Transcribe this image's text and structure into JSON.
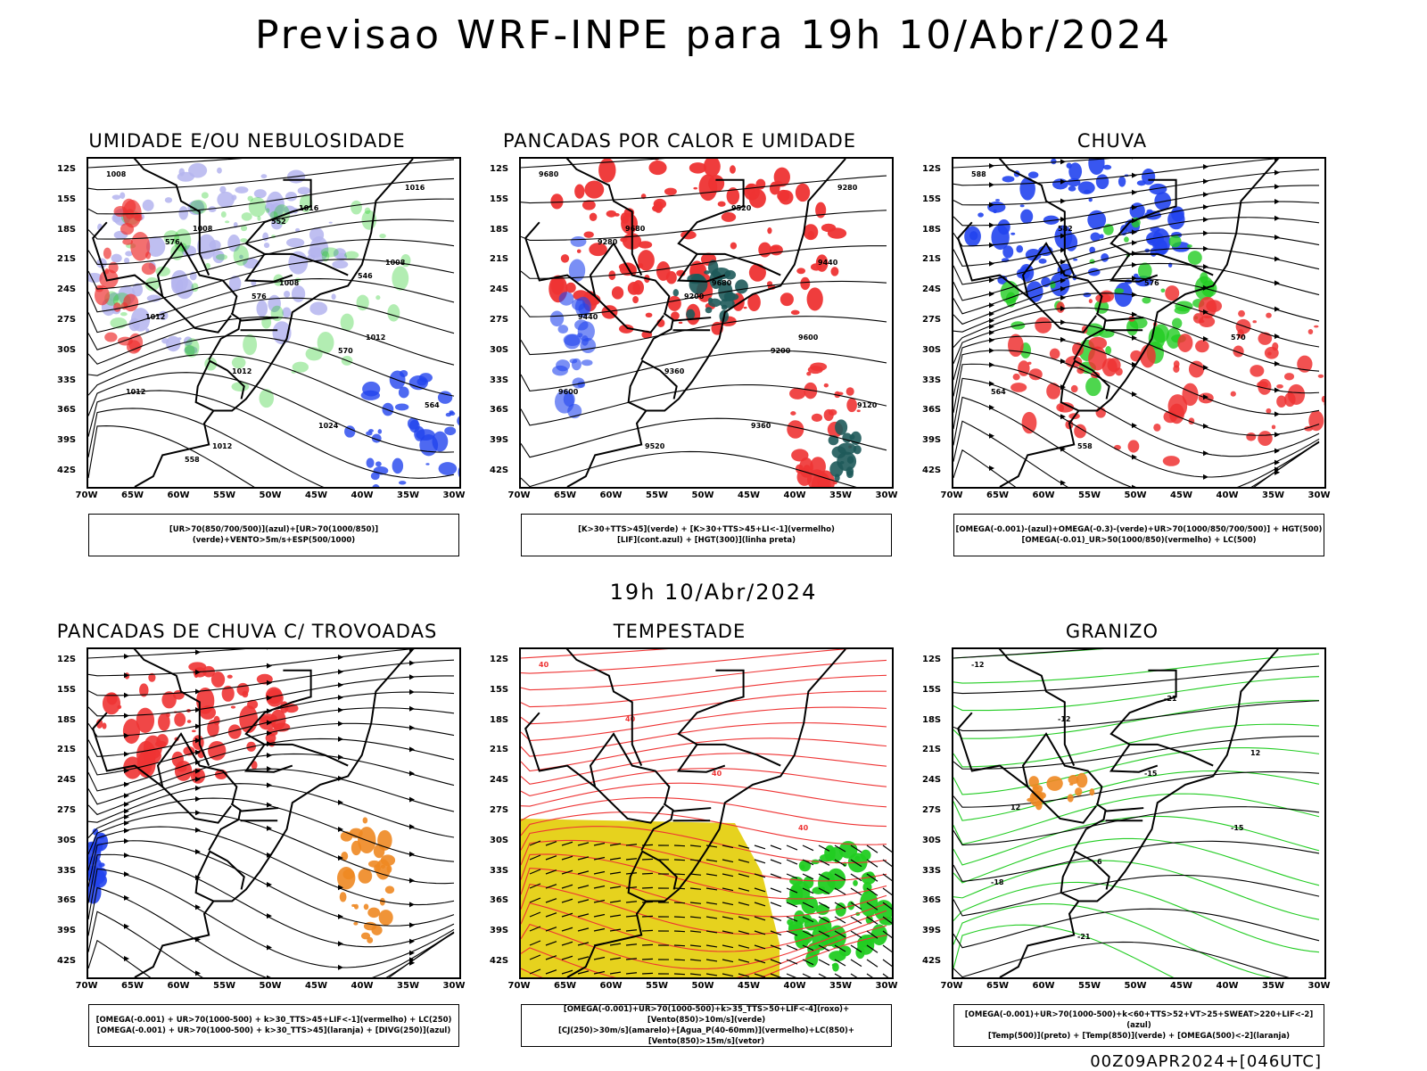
{
  "title": "Previsao WRF-INPE  para 19h 10/Abr/2024",
  "subtitle": "19h 10/Abr/2024",
  "footer": "00Z09APR2024+[046UTC]",
  "lat_labels": [
    "12S",
    "15S",
    "18S",
    "21S",
    "24S",
    "27S",
    "30S",
    "33S",
    "36S",
    "39S",
    "42S"
  ],
  "lon_labels": [
    "70W",
    "65W",
    "60W",
    "55W",
    "50W",
    "45W",
    "40W",
    "35W",
    "30W"
  ],
  "colors": {
    "black": "#000000",
    "red": "#ee3333",
    "green": "#22cc22",
    "blue": "#2244ee",
    "lavender": "#b4b4ee",
    "yellow": "#e6d21e",
    "orange": "#ee8822",
    "teal": "#1e5a5a",
    "darkgreen": "#0b5f0b"
  },
  "panels": [
    {
      "id": "umidade",
      "title": "UMIDADE E/OU NEBULOSIDADE",
      "legend": [
        "[UR>70(850/700/500)](azul)+[UR>70(1000/850)](verde)+VENTO>5m/s+ESP(500/1000)"
      ],
      "contour_labels": [
        "1008",
        "1008",
        "1008",
        "1012",
        "1012",
        "1012",
        "1016",
        "1008",
        "1012",
        "1012",
        "1024",
        "1016",
        "576",
        "576",
        "570",
        "564",
        "558",
        "552",
        "546"
      ]
    },
    {
      "id": "pancadas-calor",
      "title": "PANCADAS POR CALOR E UMIDADE",
      "legend": [
        "[K>30+TTS>45](verde) + [K>30+TTS>45+LI<-1](vermelho)",
        "[LIF](cont.azul) + [HGT(300)](linha preta)"
      ],
      "contour_labels": [
        "9680",
        "9680",
        "9680",
        "9600",
        "9600",
        "9520",
        "9520",
        "9440",
        "9440",
        "9360",
        "9360",
        "9280",
        "9280",
        "9200",
        "9200",
        "9120"
      ]
    },
    {
      "id": "chuva",
      "title": "CHUVA",
      "legend": [
        "[OMEGA(-0.001)-(azul)+OMEGA(-0.3)-(verde)+UR>70(1000/850/700/500)] + HGT(500)",
        "[OMEGA(-0.01)_UR>50(1000/850)(vermelho) + LC(500)"
      ],
      "contour_labels": [
        "588",
        "582",
        "576",
        "570",
        "564",
        "558"
      ]
    },
    {
      "id": "trovoadas",
      "title": "PANCADAS DE CHUVA C/ TROVOADAS",
      "legend": [
        "[OMEGA(-0.001) + UR>70(1000-500) + k>30_TTS>45+LIF<-1](vermelho) + LC(250)",
        "[OMEGA(-0.001) + UR>70(1000-500) + k>30_TTS>45](laranja) + [DIVG(250)](azul)"
      ],
      "contour_labels": []
    },
    {
      "id": "tempestade",
      "title": "TEMPESTADE",
      "legend": [
        "[OMEGA(-0.001)+UR>70(1000-500)+k>35_TTS>50+LIF<-4](roxo)+[Vento(850)>10m/s](verde)",
        "[CJ(250)>30m/s](amarelo)+[Agua_P(40-60mm)](vermelho)+LC(850)+[Vento(850)>15m/s](vetor)"
      ],
      "contour_labels": [
        "40",
        "40",
        "40",
        "40"
      ]
    },
    {
      "id": "granizo",
      "title": "GRANIZO",
      "legend": [
        "[OMEGA(-0.001)+UR>70(1000-500)+k<60+TTS>52+VT>25+SWEAT>220+LIF<-2](azul)",
        "[Temp(500)](preto) + [Temp(850)](verde) + [OMEGA(500)<-2](laranja)"
      ],
      "contour_labels": [
        "-12",
        "-12",
        "-15",
        "-15",
        "-18",
        "-21",
        "-21",
        "12",
        "12",
        "6"
      ]
    }
  ]
}
